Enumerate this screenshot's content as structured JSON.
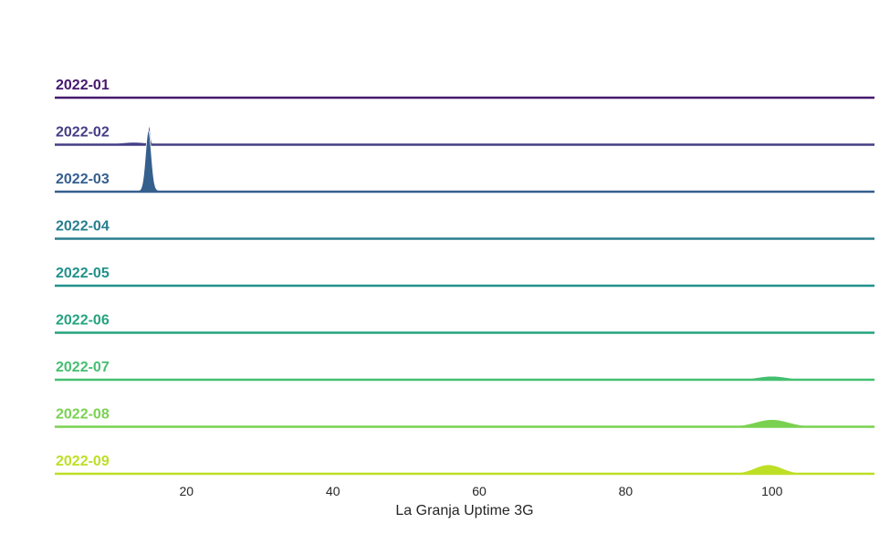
{
  "chart_data": {
    "type": "ridgeline",
    "xlabel": "La Granja Uptime 3G",
    "xlim": [
      2,
      114
    ],
    "xticks": [
      20,
      40,
      60,
      80,
      100
    ],
    "grid": false,
    "legend": "none",
    "series": [
      {
        "name": "2022-01",
        "color": "#46186e",
        "peaks": []
      },
      {
        "name": "2022-02",
        "color": "#433e85",
        "peaks": [
          {
            "x": 12.8,
            "width": 2.0,
            "height": 0.04
          },
          {
            "x": 14.9,
            "width": 0.15,
            "height": 0.3
          }
        ]
      },
      {
        "name": "2022-03",
        "color": "#355f8d",
        "peaks": [
          {
            "x": 14.8,
            "width": 0.4,
            "height": 1.0
          },
          {
            "x": 16.0,
            "width": 3.0,
            "height": 0.02
          }
        ]
      },
      {
        "name": "2022-04",
        "color": "#287d8e",
        "peaks": []
      },
      {
        "name": "2022-05",
        "color": "#21918c",
        "peaks": []
      },
      {
        "name": "2022-06",
        "color": "#25a37f",
        "peaks": []
      },
      {
        "name": "2022-07",
        "color": "#44bf70",
        "peaks": [
          {
            "x": 100.0,
            "width": 2.0,
            "height": 0.06
          }
        ]
      },
      {
        "name": "2022-08",
        "color": "#7ad151",
        "peaks": [
          {
            "x": 100.0,
            "width": 2.3,
            "height": 0.12
          }
        ]
      },
      {
        "name": "2022-09",
        "color": "#bddf26",
        "peaks": [
          {
            "x": 99.5,
            "width": 1.9,
            "height": 0.15
          }
        ]
      }
    ]
  }
}
